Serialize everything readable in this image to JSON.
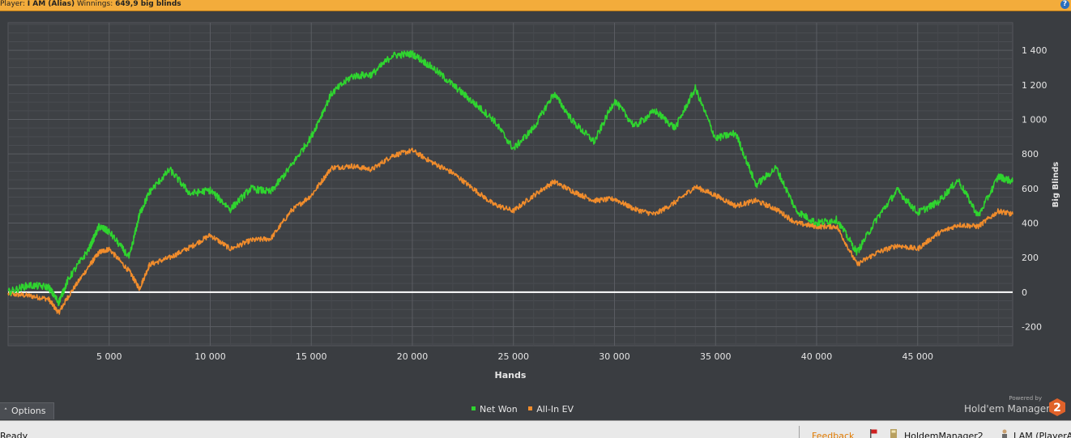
{
  "header": {
    "player_label": "Player:",
    "player_name": "I AM (Alias)",
    "winnings_label": "Winnings:",
    "winnings_value": "649,9 big blinds"
  },
  "chart_data": {
    "type": "line",
    "xlabel": "Hands",
    "ylabel": "Big Blinds",
    "xlim": [
      0,
      49700
    ],
    "ylim": [
      -310,
      1560
    ],
    "xticks": [
      5000,
      10000,
      15000,
      20000,
      25000,
      30000,
      35000,
      40000,
      45000
    ],
    "xtick_labels": [
      "5 000",
      "10 000",
      "15 000",
      "20 000",
      "25 000",
      "30 000",
      "35 000",
      "40 000",
      "45 000"
    ],
    "yticks": [
      -200,
      0,
      200,
      400,
      600,
      800,
      1000,
      1200,
      1400
    ],
    "ytick_labels": [
      "-200",
      "0",
      "200",
      "400",
      "600",
      "800",
      "1 000",
      "1 200",
      "1 400"
    ],
    "grid": true,
    "zero_line": true,
    "legend": "bottom-center",
    "x": [
      0,
      1000,
      2000,
      2500,
      3000,
      4000,
      4500,
      5000,
      6000,
      6500,
      7000,
      8000,
      9000,
      10000,
      11000,
      12000,
      13000,
      14000,
      15000,
      16000,
      17000,
      18000,
      19000,
      20000,
      21000,
      22000,
      23000,
      24000,
      25000,
      26000,
      27000,
      28000,
      29000,
      30000,
      31000,
      32000,
      33000,
      34000,
      35000,
      36000,
      37000,
      38000,
      39000,
      40000,
      41000,
      42000,
      43000,
      44000,
      45000,
      46000,
      47000,
      48000,
      49000,
      49700
    ],
    "series": [
      {
        "name": "Net Won",
        "color": "#2fd42f",
        "values": [
          0,
          40,
          30,
          -60,
          80,
          250,
          380,
          350,
          200,
          450,
          580,
          710,
          570,
          590,
          480,
          600,
          580,
          730,
          900,
          1150,
          1250,
          1260,
          1370,
          1380,
          1300,
          1200,
          1100,
          1000,
          830,
          950,
          1150,
          980,
          870,
          1110,
          960,
          1050,
          950,
          1180,
          890,
          920,
          620,
          720,
          470,
          400,
          420,
          230,
          430,
          590,
          460,
          520,
          650,
          440,
          670,
          640
        ]
      },
      {
        "name": "All-In EV",
        "color": "#f08c2c",
        "values": [
          -10,
          -20,
          -40,
          -120,
          -20,
          150,
          230,
          250,
          120,
          20,
          160,
          200,
          260,
          330,
          250,
          300,
          310,
          470,
          560,
          720,
          730,
          710,
          790,
          820,
          750,
          690,
          600,
          510,
          470,
          560,
          640,
          580,
          530,
          540,
          480,
          450,
          520,
          610,
          560,
          500,
          530,
          480,
          400,
          380,
          380,
          160,
          230,
          270,
          250,
          340,
          390,
          380,
          470,
          450
        ]
      }
    ]
  },
  "controls": {
    "options_label": "Options"
  },
  "branding": {
    "powered_by": "Powered by",
    "product": "Hold'em Manager",
    "logo_number": "2"
  },
  "statusbar": {
    "ready": "Ready",
    "feedback": "Feedback",
    "app_name": "HoldemManager2",
    "player_tab": "I AM (PlayerA"
  }
}
